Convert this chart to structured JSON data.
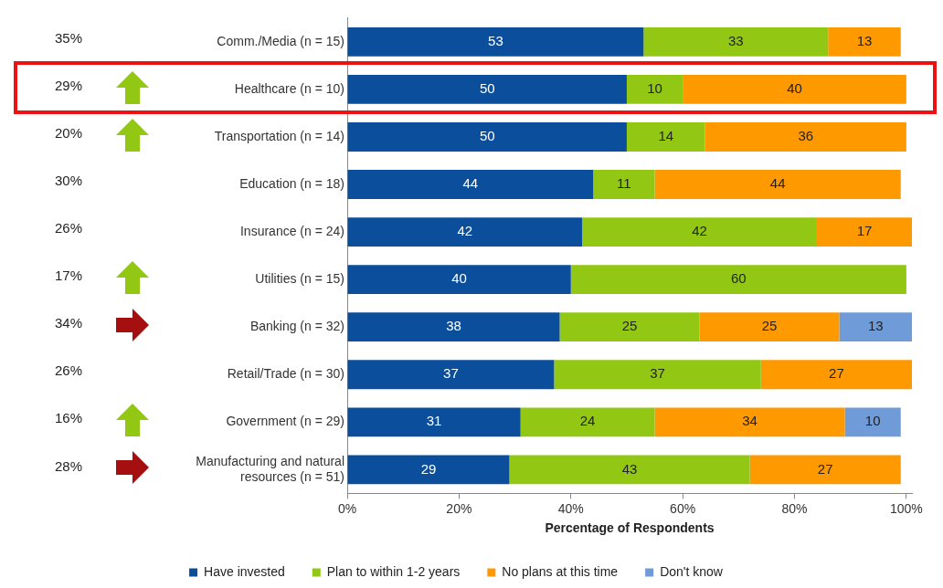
{
  "chart_data": {
    "type": "bar",
    "orientation": "horizontal",
    "stacked": true,
    "xlabel": "Percentage of Respondents",
    "categories": [
      "Comm./Media (n = 15)",
      "Healthcare (n = 10)",
      "Transportation (n = 14)",
      "Education (n = 18)",
      "Insurance (n = 24)",
      "Utilities (n = 15)",
      "Banking (n = 32)",
      "Retail/Trade (n = 30)",
      "Government (n = 29)",
      "Manufacturing and natural resources (n = 51)"
    ],
    "series": [
      {
        "name": "Have invested",
        "color": "#0b4f9c",
        "values": [
          53,
          50,
          50,
          44,
          42,
          40,
          38,
          37,
          31,
          29
        ]
      },
      {
        "name": "Plan to within 1-2 years",
        "color": "#92c814",
        "values": [
          33,
          10,
          14,
          11,
          42,
          60,
          25,
          37,
          24,
          43
        ]
      },
      {
        "name": "No plans at this time",
        "color": "#ff9900",
        "values": [
          13,
          40,
          36,
          44,
          17,
          null,
          25,
          27,
          34,
          27
        ]
      },
      {
        "name": "Don't know",
        "color": "#6f9bd8",
        "values": [
          null,
          null,
          null,
          null,
          null,
          null,
          13,
          null,
          10,
          null
        ]
      }
    ],
    "xlim": [
      0,
      101
    ],
    "xticks": [
      {
        "value": 0,
        "label": "0%"
      },
      {
        "value": 20,
        "label": "20%"
      },
      {
        "value": 40,
        "label": "40%"
      },
      {
        "value": 60,
        "label": "60%"
      },
      {
        "value": 80,
        "label": "80%"
      },
      {
        "value": 100,
        "label": "100%"
      }
    ],
    "data_labels": true,
    "legend": "bottom",
    "grid": false,
    "annotations": [
      "35%",
      "29%",
      "20%",
      "30%",
      "26%",
      "17%",
      "34%",
      "26%",
      "16%",
      "28%"
    ]
  }
}
